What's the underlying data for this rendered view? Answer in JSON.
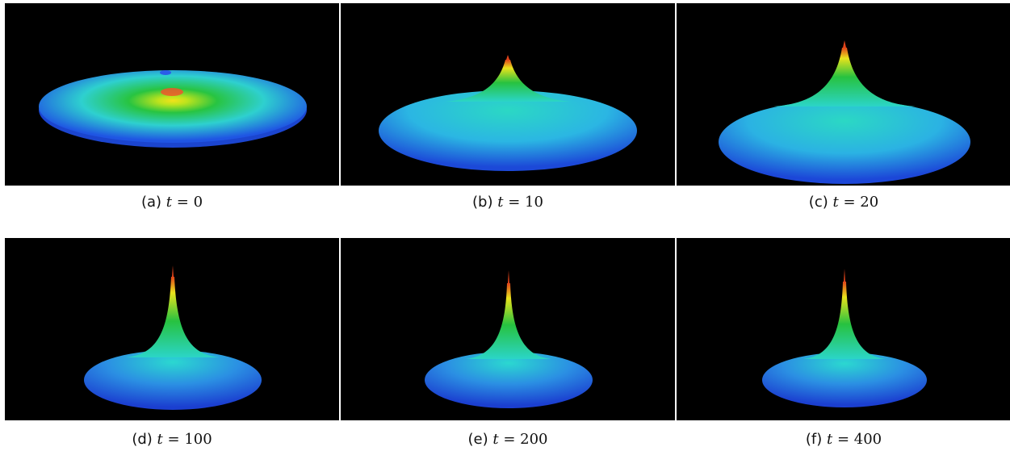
{
  "figure": {
    "panels": [
      {
        "label": "(a)",
        "var": "t",
        "op": "=",
        "value": "0"
      },
      {
        "label": "(b)",
        "var": "t",
        "op": "=",
        "value": "10"
      },
      {
        "label": "(c)",
        "var": "t",
        "op": "=",
        "value": "20"
      },
      {
        "label": "(d)",
        "var": "t",
        "op": "=",
        "value": "100"
      },
      {
        "label": "(e)",
        "var": "t",
        "op": "=",
        "value": "200"
      },
      {
        "label": "(f)",
        "var": "t",
        "op": "=",
        "value": "400"
      }
    ],
    "colors": {
      "background": "#000000",
      "base": "#1d4fe0",
      "mid": "#2bd0e0",
      "green": "#27c23a",
      "yellow": "#f0e21a",
      "peak": "#e0431a"
    }
  }
}
